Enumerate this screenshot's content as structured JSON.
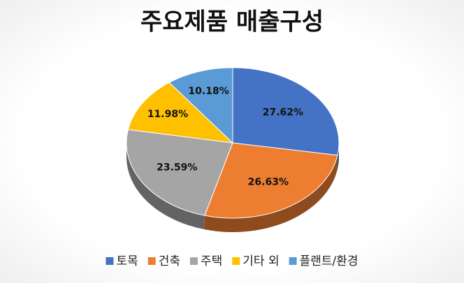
{
  "chart_data": {
    "type": "pie",
    "title": "주요제품 매출구성",
    "categories": [
      "토목",
      "건축",
      "주택",
      "기타 외",
      "플랜트/환경"
    ],
    "values": [
      27.62,
      26.63,
      23.59,
      11.98,
      10.18
    ],
    "value_labels": [
      "27.62%",
      "26.63%",
      "23.59%",
      "11.98%",
      "10.18%"
    ],
    "colors": [
      "#4472c4",
      "#ed7d31",
      "#a5a5a5",
      "#ffc000",
      "#5b9bd5"
    ],
    "legend": "bottom"
  }
}
